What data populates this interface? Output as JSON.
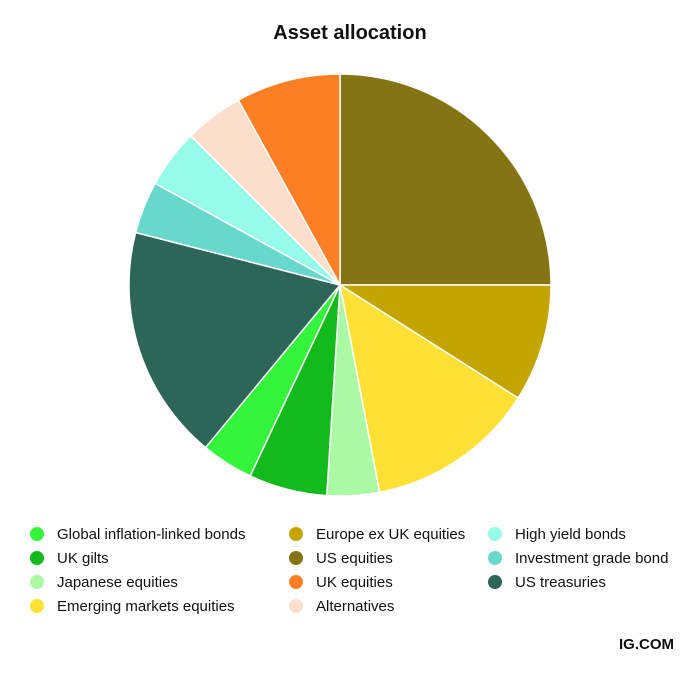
{
  "chart_data": {
    "type": "pie",
    "title": "Asset allocation",
    "start_angle_deg": 0,
    "direction": "clockwise",
    "legend_position": "bottom",
    "slices": [
      {
        "label": "US equities",
        "value": 25,
        "color": "#857413"
      },
      {
        "label": "Europe ex UK equities",
        "value": 9,
        "color": "#C4A400"
      },
      {
        "label": "Emerging markets equities",
        "value": 13,
        "color": "#FFE135"
      },
      {
        "label": "Japanese equities",
        "value": 4,
        "color": "#AAFAA5"
      },
      {
        "label": "UK gilts",
        "value": 6,
        "color": "#13BA1C"
      },
      {
        "label": "Global inflation-linked bonds",
        "value": 4,
        "color": "#33F43B"
      },
      {
        "label": "US treasuries",
        "value": 18,
        "color": "#2D6558"
      },
      {
        "label": "Investment grade bond",
        "value": 4,
        "color": "#67D8CC"
      },
      {
        "label": "High yield bonds",
        "value": 4.5,
        "color": "#96FBE9"
      },
      {
        "label": "Alternatives",
        "value": 4.5,
        "color": "#FDDDCB"
      },
      {
        "label": "UK equities",
        "value": 8,
        "color": "#FC7E25"
      }
    ]
  },
  "legend": {
    "items": [
      {
        "label": "Global inflation-linked bonds",
        "color": "#33F43B"
      },
      {
        "label": "UK gilts",
        "color": "#13BA1C"
      },
      {
        "label": "Japanese equities",
        "color": "#AAFAA5"
      },
      {
        "label": "Emerging markets equities",
        "color": "#FFE135"
      },
      {
        "label": "Europe ex UK equities",
        "color": "#C4A400"
      },
      {
        "label": "US equities",
        "color": "#857413"
      },
      {
        "label": "UK equities",
        "color": "#FC7E25"
      },
      {
        "label": "Alternatives",
        "color": "#FDDDCB"
      },
      {
        "label": "High yield bonds",
        "color": "#96FBE9"
      },
      {
        "label": "Investment grade bond",
        "color": "#67D8CC"
      },
      {
        "label": "US treasuries",
        "color": "#2D6558"
      }
    ]
  },
  "footer": {
    "brand": "IG.COM"
  }
}
